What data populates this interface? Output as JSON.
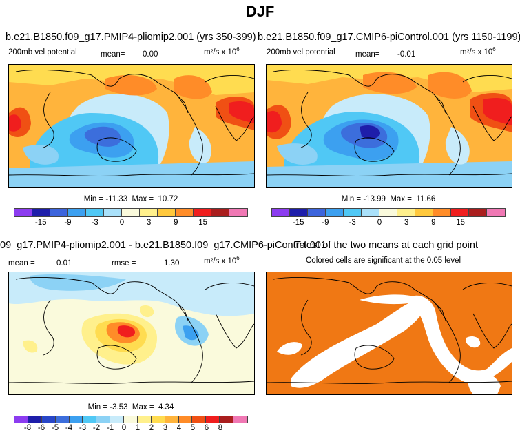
{
  "title": "DJF",
  "colors": {
    "palette13": [
      "#8c3cf0",
      "#1e1eaa",
      "#3c64dc",
      "#3ca0f0",
      "#50c8f5",
      "#aae1fa",
      "#fafadc",
      "#fff08c",
      "#ffc83c",
      "#ff8c28",
      "#f01e1e",
      "#aa1e1e",
      "#f078b4"
    ],
    "palette17": [
      "#8c3cf0",
      "#1e1eaa",
      "#2846c8",
      "#3c6edc",
      "#3ca0f0",
      "#50c8f5",
      "#8cd2f5",
      "#c8ebfa",
      "#fafadc",
      "#fff08c",
      "#ffdc50",
      "#ffb43c",
      "#ff8c28",
      "#f05014",
      "#f01e1e",
      "#aa1e1e",
      "#f078b4"
    ],
    "signif": "#f07814",
    "land_line": "#000000"
  },
  "panels": {
    "p1": {
      "title": "b.e21.B1850.f09_g17.PMIP4-pliomip2.001 (yrs 350-399)",
      "left_label": "200mb  vel  potential",
      "mean_label": "mean=",
      "mean_value": "0.00",
      "units": "m²/s x 10",
      "units_exp": "6",
      "min_label": "Min =",
      "min_value": "-11.33",
      "max_label": "Max =",
      "max_value": "10.72",
      "ticks": [
        "-15",
        "-9",
        "-3",
        "0",
        "3",
        "9",
        "15"
      ]
    },
    "p2": {
      "title": "b.e21.B1850.f09_g17.CMIP6-piControl.001 (yrs 1150-1199)",
      "left_label": "200mb  vel  potential",
      "mean_label": "mean=",
      "mean_value": "-0.01",
      "units": "m²/s x 10",
      "units_exp": "6",
      "min_label": "Min =",
      "min_value": "-13.99",
      "max_label": "Max =",
      "max_value": "11.66",
      "ticks": [
        "-15",
        "-9",
        "-3",
        "0",
        "3",
        "9",
        "15"
      ]
    },
    "p3": {
      "title": "09_g17.PMIP4-pliomip2.001 - b.e21.B1850.f09_g17.CMIP6-piControl.001",
      "mean_label": "mean =",
      "mean_value": "0.01",
      "rmse_label": "rmse =",
      "rmse_value": "1.30",
      "units": "m²/s x 10",
      "units_exp": "6",
      "min_label": "Min =",
      "min_value": "-3.53",
      "max_label": "Max =",
      "max_value": "4.34",
      "ticks": [
        "-8",
        "-6",
        "-5",
        "-4",
        "-3",
        "-2",
        "-1",
        "0",
        "1",
        "2",
        "3",
        "4",
        "5",
        "6",
        "8"
      ]
    },
    "p4": {
      "title": "T-test of the two means at each grid point",
      "subtitle": "Colored cells are significant at the 0.05 level"
    }
  }
}
